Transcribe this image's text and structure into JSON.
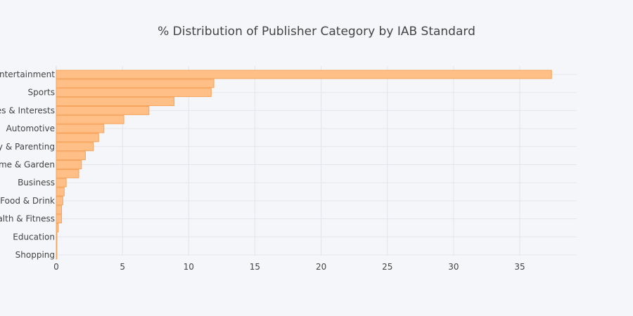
{
  "colors": {
    "background": "#f5f6f9",
    "bar_fill": "#ffbf86",
    "bar_stroke": "#f5a35a",
    "text": "#444444",
    "grid": "#e3e5ea"
  },
  "chart_data": {
    "type": "bar",
    "orientation": "horizontal",
    "title": "% Distribution of Publisher Category by IAB Standard",
    "xlabel": "",
    "ylabel": "",
    "xlim": [
      0,
      39.3
    ],
    "x_ticks": [
      0,
      5,
      10,
      15,
      20,
      25,
      30,
      35
    ],
    "grid": true,
    "legend": "none",
    "categories": [
      "Entertainment",
      "",
      "Sports",
      "",
      "Hobbies & Interests",
      "",
      "Automotive",
      "",
      "Family & Parenting",
      "",
      "Home & Garden",
      "",
      "Business",
      "",
      "Food & Drink",
      "",
      "Health & Fitness",
      "",
      "Education",
      "",
      "Shopping"
    ],
    "category_labels_shown": [
      "Entertainment",
      "Sports",
      "Hobbies & Interests",
      "Automotive",
      "Family & Parenting",
      "Home & Garden",
      "Business",
      "Food & Drink",
      "Health & Fitness",
      "Education",
      "Shopping"
    ],
    "values": [
      37.4,
      11.9,
      11.7,
      8.9,
      7.0,
      5.1,
      3.6,
      3.2,
      2.8,
      2.2,
      1.9,
      1.7,
      0.75,
      0.6,
      0.5,
      0.4,
      0.4,
      0.15,
      0.05,
      0.02,
      0.02
    ]
  }
}
